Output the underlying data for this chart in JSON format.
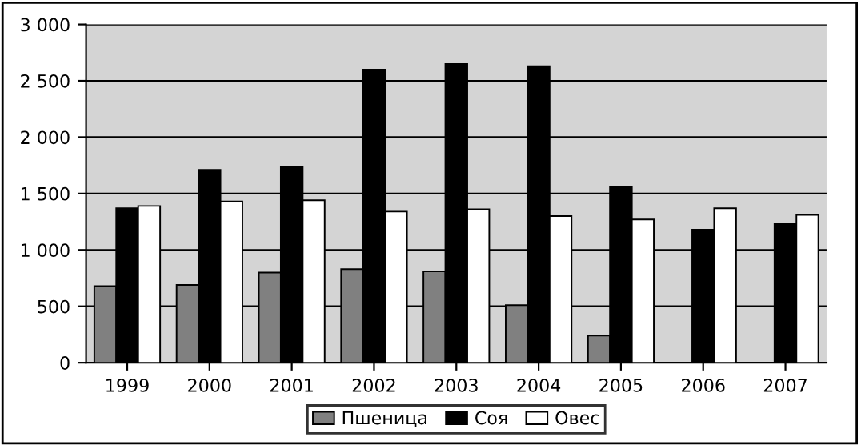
{
  "chart_data": {
    "type": "bar",
    "categories": [
      "1999",
      "2000",
      "2001",
      "2002",
      "2003",
      "2004",
      "2005",
      "2006",
      "2007"
    ],
    "series": [
      {
        "name": "Пшеница",
        "color": "#808080",
        "values": [
          680,
          690,
          800,
          830,
          810,
          510,
          240,
          0,
          0
        ]
      },
      {
        "name": "Соя",
        "color": "#000000",
        "values": [
          1370,
          1710,
          1740,
          2600,
          2650,
          2630,
          1560,
          1180,
          1230
        ]
      },
      {
        "name": "Овес",
        "color": "#ffffff",
        "values": [
          1390,
          1430,
          1440,
          1340,
          1360,
          1300,
          1270,
          1370,
          1310
        ]
      }
    ],
    "ylim": [
      0,
      3000
    ],
    "yticks": [
      0,
      500,
      {
        "value": 1000,
        "label": "1 000"
      },
      {
        "value": 1500,
        "label": "1 500"
      },
      {
        "value": 2000,
        "label": "2 000"
      },
      {
        "value": 2500,
        "label": "2 500"
      },
      {
        "value": 3000,
        "label": "3 000"
      }
    ],
    "grid": "y",
    "legend": "bottom"
  }
}
